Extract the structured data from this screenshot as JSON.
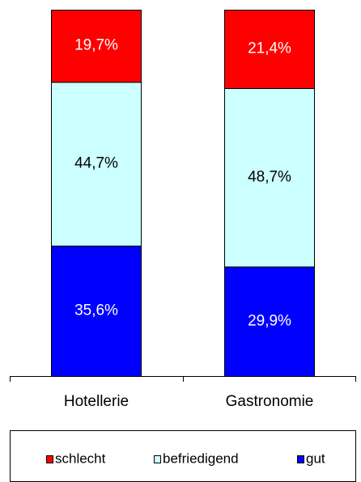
{
  "chart_data": {
    "type": "stacked_bar",
    "categories": [
      "Hotellerie",
      "Gastronomie"
    ],
    "series": [
      {
        "name": "gut",
        "color": "#0000ff",
        "values": [
          35.6,
          29.9
        ],
        "value_labels": [
          "35,6%",
          "29,9%"
        ]
      },
      {
        "name": "befriedigend",
        "color": "#ccffff",
        "values": [
          44.7,
          48.7
        ],
        "value_labels": [
          "44,7%",
          "48,7%"
        ]
      },
      {
        "name": "schlecht",
        "color": "#ff0000",
        "values": [
          19.7,
          21.4
        ],
        "value_labels": [
          "19,7%",
          "21,4%"
        ]
      }
    ],
    "ylim": [
      0,
      100
    ]
  }
}
